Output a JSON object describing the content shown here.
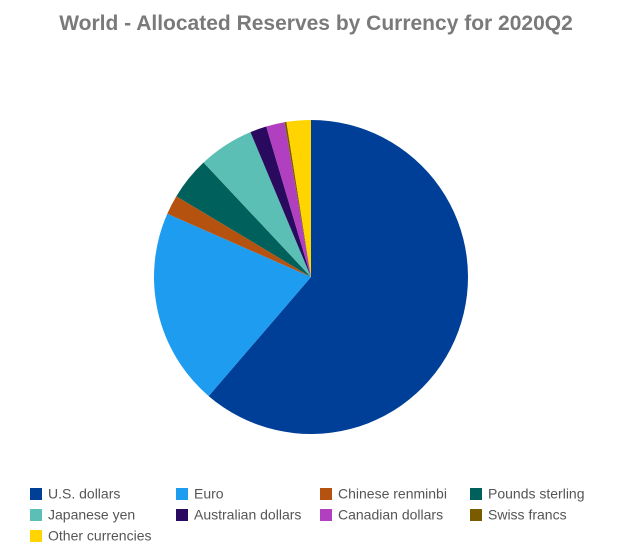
{
  "chart_data": {
    "type": "pie",
    "title": "World - Allocated Reserves by Currency for 2020Q2",
    "categories": [
      "U.S. dollars",
      "Euro",
      "Chinese renminbi",
      "Pounds sterling",
      "Japanese yen",
      "Australian dollars",
      "Canadian dollars",
      "Swiss francs",
      "Other currencies"
    ],
    "values": [
      61.3,
      20.3,
      2.0,
      4.4,
      5.7,
      1.7,
      1.9,
      0.2,
      2.5
    ],
    "colors": [
      "#003f98",
      "#1e9cf0",
      "#b5520f",
      "#00605c",
      "#5bbfb5",
      "#2a0a5e",
      "#b040c0",
      "#7a5c00",
      "#ffd400"
    ],
    "legend": "bottom"
  }
}
